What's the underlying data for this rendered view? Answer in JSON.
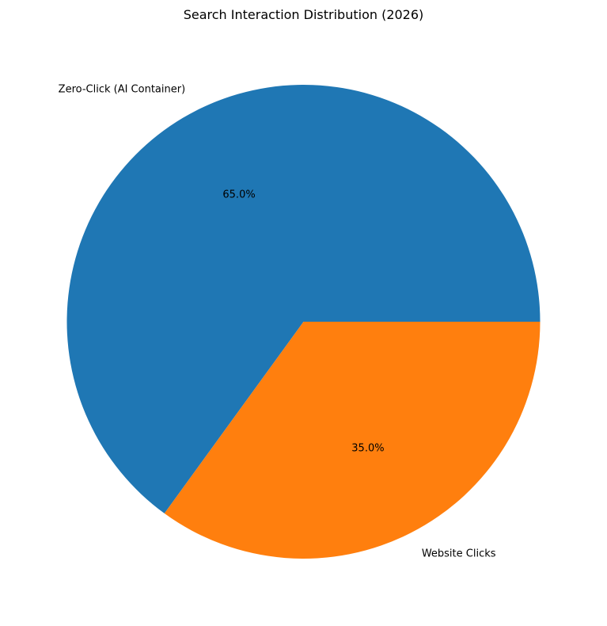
{
  "chart_data": {
    "type": "pie",
    "title": "Search Interaction Distribution (2026)",
    "slices": [
      {
        "label": "Zero-Click (AI Container)",
        "value": 65.0,
        "pct_label": "65.0%",
        "color": "#1f77b4"
      },
      {
        "label": "Website Clicks",
        "value": 35.0,
        "pct_label": "35.0%",
        "color": "#ff7f0e"
      }
    ],
    "start_angle_deg": 0,
    "direction": "counterclockwise"
  }
}
